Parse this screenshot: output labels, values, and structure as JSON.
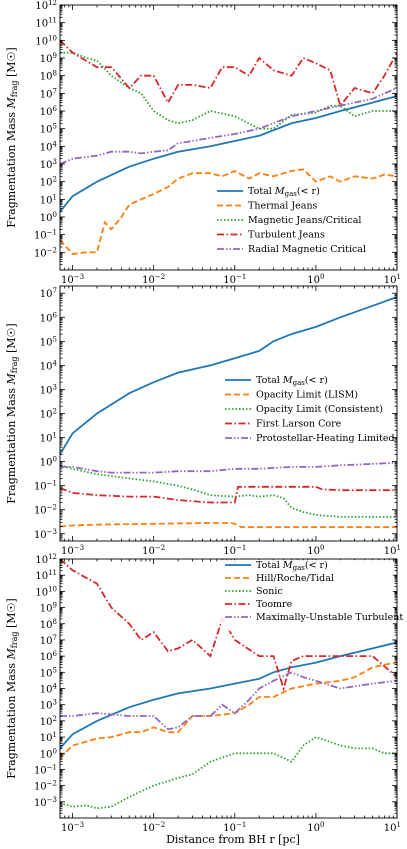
{
  "figure": {
    "xlabel": "Distance from BH r [pc]",
    "ylabel": "Fragmentation Mass M_frag [M☉]",
    "x_scale": "log",
    "y_scale": "log"
  },
  "chart_data": [
    {
      "type": "line",
      "panel": "top",
      "xlim": [
        0.0007,
        10
      ],
      "ylim": [
        0.001,
        1000000000000.0
      ],
      "x_ticks": [
        -3,
        -2,
        -1,
        0,
        1
      ],
      "y_ticks": [
        -2,
        -1,
        0,
        1,
        2,
        3,
        4,
        5,
        6,
        7,
        8,
        9,
        10,
        11,
        12
      ],
      "legend_position": "lower-right",
      "series": [
        {
          "name": "Total M_gas(< r)",
          "color": "#1f77b4",
          "style": "solid",
          "x": [
            0.0007,
            0.001,
            0.002,
            0.005,
            0.01,
            0.02,
            0.05,
            0.1,
            0.2,
            0.5,
            1,
            2,
            5,
            10
          ],
          "y": [
            2,
            15,
            100,
            700,
            2000,
            5000,
            10000,
            20000,
            40000,
            200000,
            400000,
            1000000,
            3000000,
            7000000
          ]
        },
        {
          "name": "Thermal Jeans",
          "color": "#ff7f0e",
          "style": "dashed",
          "x": [
            0.0007,
            0.001,
            0.0015,
            0.002,
            0.0025,
            0.003,
            0.004,
            0.005,
            0.007,
            0.01,
            0.015,
            0.02,
            0.03,
            0.05,
            0.07,
            0.1,
            0.15,
            0.2,
            0.3,
            0.5,
            0.7,
            1,
            1.5,
            2,
            3,
            5,
            7,
            10
          ],
          "y": [
            0.05,
            0.008,
            0.01,
            0.01,
            0.5,
            0.2,
            1,
            5,
            10,
            20,
            50,
            150,
            300,
            300,
            200,
            400,
            150,
            300,
            200,
            400,
            500,
            100,
            200,
            100,
            200,
            150,
            250,
            200
          ]
        },
        {
          "name": "Magnetic Jeans/Critical",
          "color": "#2ca02c",
          "style": "dotted",
          "x": [
            0.0007,
            0.001,
            0.0015,
            0.002,
            0.003,
            0.005,
            0.007,
            0.01,
            0.015,
            0.02,
            0.03,
            0.05,
            0.1,
            0.2,
            0.3,
            0.5,
            1,
            1.5,
            2,
            3,
            5,
            10
          ],
          "y": [
            2000000000,
            2000000000,
            1000000000,
            700000000,
            100000000,
            20000000,
            10000000,
            1000000,
            300000,
            200000,
            300000,
            1000000,
            500000,
            100000,
            100000,
            600000,
            800000,
            2000000,
            2000000,
            500000,
            1000000,
            1000000
          ]
        },
        {
          "name": "Turbulent Jeans",
          "color": "#d62728",
          "style": "dashdot",
          "x": [
            0.0007,
            0.001,
            0.002,
            0.003,
            0.005,
            0.007,
            0.01,
            0.015,
            0.02,
            0.03,
            0.05,
            0.07,
            0.1,
            0.15,
            0.2,
            0.3,
            0.5,
            0.7,
            1,
            1.5,
            2,
            3,
            5,
            7,
            10
          ],
          "y": [
            10000000000,
            2000000000,
            300000000,
            300000000,
            20000000,
            100000000,
            100000000,
            3000000,
            30000000,
            30000000,
            20000000,
            300000000,
            300000000,
            100000000,
            1000000000,
            200000000,
            100000000,
            1000000000,
            500000000,
            200000000,
            2000000,
            20000000,
            10000000,
            100000000,
            2000000000
          ]
        },
        {
          "name": "Radial Magnetic Critical",
          "color": "#9467bd",
          "style": "dashdotdot",
          "x": [
            0.0007,
            0.001,
            0.002,
            0.003,
            0.005,
            0.007,
            0.01,
            0.015,
            0.02,
            0.03,
            0.05,
            0.1,
            0.2,
            0.5,
            1,
            2,
            5,
            10
          ],
          "y": [
            1000,
            2000,
            3000,
            5000,
            5000,
            4000,
            5000,
            6000,
            15000,
            20000,
            30000,
            50000,
            100000,
            500000,
            1000000,
            2000000,
            5000000,
            20000000
          ]
        }
      ]
    },
    {
      "type": "line",
      "panel": "middle",
      "xlim": [
        0.0007,
        10
      ],
      "ylim": [
        0.0005,
        20000000.0
      ],
      "x_ticks": [
        -3,
        -2,
        -1,
        0,
        1
      ],
      "y_ticks": [
        -3,
        -2,
        -1,
        0,
        1,
        2,
        3,
        4,
        5,
        6,
        7
      ],
      "legend_position": "center-right",
      "series": [
        {
          "name": "Total M_gas(< r)",
          "color": "#1f77b4",
          "style": "solid",
          "x": [
            0.0007,
            0.001,
            0.002,
            0.005,
            0.01,
            0.02,
            0.05,
            0.1,
            0.2,
            0.3,
            0.5,
            1,
            2,
            5,
            10
          ],
          "y": [
            2,
            15,
            100,
            700,
            2000,
            5000,
            10000,
            20000,
            40000,
            100000,
            200000,
            400000,
            1000000,
            3000000,
            7000000
          ]
        },
        {
          "name": "Opacity Limit (LISM)",
          "color": "#ff7f0e",
          "style": "dashed",
          "x": [
            0.0007,
            0.001,
            0.002,
            0.005,
            0.01,
            0.02,
            0.05,
            0.09,
            0.1,
            0.12,
            0.2,
            0.5,
            1,
            2,
            5,
            10
          ],
          "y": [
            0.002,
            0.0022,
            0.0024,
            0.0025,
            0.0026,
            0.0027,
            0.0028,
            0.0028,
            0.0026,
            0.0019,
            0.0019,
            0.0019,
            0.0019,
            0.0019,
            0.0019,
            0.0019
          ]
        },
        {
          "name": "Opacity Limit (Consistent)",
          "color": "#2ca02c",
          "style": "dotted",
          "x": [
            0.0007,
            0.001,
            0.002,
            0.005,
            0.01,
            0.02,
            0.03,
            0.05,
            0.1,
            0.15,
            0.2,
            0.3,
            0.4,
            0.5,
            0.7,
            1,
            2,
            5,
            10
          ],
          "y": [
            0.7,
            0.5,
            0.3,
            0.2,
            0.15,
            0.1,
            0.07,
            0.04,
            0.035,
            0.04,
            0.035,
            0.04,
            0.03,
            0.012,
            0.008,
            0.006,
            0.005,
            0.005,
            0.005
          ]
        },
        {
          "name": "First Larson Core",
          "color": "#d62728",
          "style": "dashdot",
          "x": [
            0.0007,
            0.001,
            0.002,
            0.005,
            0.01,
            0.02,
            0.05,
            0.1,
            0.11,
            0.2,
            0.5,
            1,
            1.2,
            2,
            5,
            10
          ],
          "y": [
            0.08,
            0.05,
            0.04,
            0.035,
            0.035,
            0.025,
            0.02,
            0.02,
            0.09,
            0.09,
            0.09,
            0.09,
            0.07,
            0.065,
            0.065,
            0.065
          ]
        },
        {
          "name": "Protostellar-Heating Limited",
          "color": "#9467bd",
          "style": "dashdotdot",
          "x": [
            0.0007,
            0.001,
            0.002,
            0.003,
            0.005,
            0.01,
            0.02,
            0.05,
            0.1,
            0.2,
            0.5,
            1,
            2,
            5,
            10
          ],
          "y": [
            0.6,
            0.6,
            0.4,
            0.35,
            0.35,
            0.35,
            0.4,
            0.4,
            0.5,
            0.5,
            0.6,
            0.6,
            0.7,
            0.8,
            0.9
          ]
        }
      ]
    },
    {
      "type": "line",
      "panel": "bottom",
      "xlim": [
        0.0007,
        10
      ],
      "ylim": [
        0.0001,
        1000000000000.0
      ],
      "x_ticks": [
        -3,
        -2,
        -1,
        0,
        1
      ],
      "y_ticks": [
        -3,
        -2,
        -1,
        0,
        1,
        2,
        3,
        4,
        5,
        6,
        7,
        8,
        9,
        10,
        11,
        12
      ],
      "legend_position": "top-right",
      "series": [
        {
          "name": "Total M_gas(< r)",
          "color": "#1f77b4",
          "style": "solid",
          "x": [
            0.0007,
            0.001,
            0.002,
            0.005,
            0.01,
            0.02,
            0.05,
            0.1,
            0.2,
            0.3,
            0.5,
            1,
            2,
            5,
            10
          ],
          "y": [
            2,
            15,
            100,
            700,
            2000,
            5000,
            10000,
            20000,
            40000,
            100000,
            200000,
            400000,
            1000000,
            3000000,
            7000000
          ]
        },
        {
          "name": "Hill/Roche/Tidal",
          "color": "#ff7f0e",
          "style": "dashed",
          "x": [
            0.0007,
            0.001,
            0.002,
            0.003,
            0.005,
            0.007,
            0.01,
            0.015,
            0.02,
            0.03,
            0.05,
            0.1,
            0.15,
            0.2,
            0.3,
            0.5,
            1,
            2,
            3,
            5,
            7,
            10
          ],
          "y": [
            0.5,
            3,
            8,
            10,
            20,
            20,
            40,
            20,
            20,
            200,
            200,
            300,
            1000,
            3000,
            3000,
            10000,
            20000,
            30000,
            50000,
            200000,
            300000,
            400000
          ]
        },
        {
          "name": "Sonic",
          "color": "#2ca02c",
          "style": "dotted",
          "x": [
            0.0007,
            0.001,
            0.0015,
            0.002,
            0.003,
            0.005,
            0.01,
            0.02,
            0.03,
            0.05,
            0.1,
            0.2,
            0.3,
            0.5,
            0.7,
            1,
            1.5,
            2,
            3,
            5,
            7,
            10
          ],
          "y": [
            0.0008,
            0.0005,
            0.0006,
            0.0004,
            0.0005,
            0.002,
            0.01,
            0.03,
            0.05,
            0.3,
            1,
            1,
            1,
            0.3,
            3,
            10,
            5,
            3,
            2,
            2,
            1,
            1
          ]
        },
        {
          "name": "Toomre",
          "color": "#d62728",
          "style": "dashdot",
          "x": [
            0.0007,
            0.001,
            0.002,
            0.003,
            0.005,
            0.007,
            0.01,
            0.015,
            0.02,
            0.03,
            0.05,
            0.07,
            0.1,
            0.2,
            0.3,
            0.4,
            0.5,
            0.7,
            1,
            2,
            5,
            10
          ],
          "y": [
            1000000000000,
            200000000000,
            30000000000,
            1000000000,
            100000000,
            10000000,
            30000000,
            2000000,
            3000000,
            10000000,
            1000000,
            200000000,
            10000000,
            1000000,
            1000000,
            10000,
            500000,
            1000000,
            1000000,
            1000000,
            1000000,
            50000
          ]
        },
        {
          "name": "Maximally-Unstable Turbulent Scale",
          "color": "#9467bd",
          "style": "dashdotdot",
          "x": [
            0.0007,
            0.001,
            0.002,
            0.005,
            0.01,
            0.015,
            0.02,
            0.03,
            0.05,
            0.07,
            0.1,
            0.15,
            0.2,
            0.3,
            0.5,
            0.7,
            1,
            2,
            5,
            10
          ],
          "y": [
            200,
            200,
            300,
            200,
            200,
            30,
            40,
            200,
            200,
            1000,
            300,
            2000,
            10000,
            30000,
            100000,
            50000,
            30000,
            10000,
            20000,
            30000
          ]
        }
      ]
    }
  ]
}
